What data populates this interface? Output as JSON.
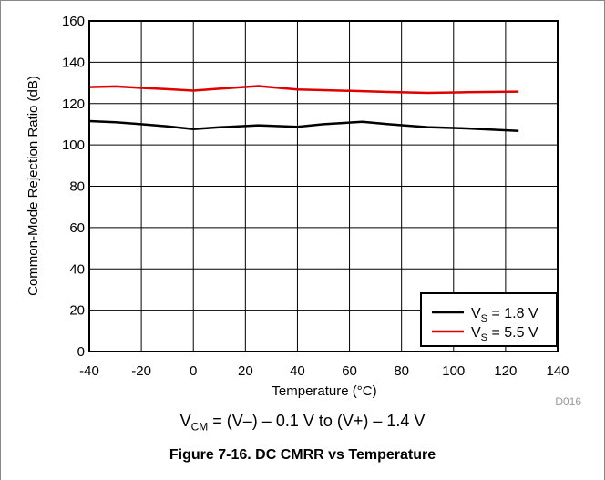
{
  "chart_data": {
    "type": "line",
    "xlabel": "Temperature (°C)",
    "ylabel": "Common-Mode Rejection Ratio (dB)",
    "xlim": [
      -40,
      140
    ],
    "ylim": [
      0,
      160
    ],
    "xticks": [
      -40,
      -20,
      0,
      20,
      40,
      60,
      80,
      100,
      120,
      140
    ],
    "yticks": [
      0,
      20,
      40,
      60,
      80,
      100,
      120,
      140,
      160
    ],
    "grid": true,
    "legend_position": "bottom-right",
    "series": [
      {
        "name": "VS = 1.8 V",
        "label_main": "V",
        "label_sub": "S",
        "label_rest": " = 1.8 V",
        "color": "#000000",
        "x": [
          -40,
          -30,
          -20,
          -10,
          0,
          10,
          25,
          40,
          50,
          65,
          75,
          90,
          105,
          125
        ],
        "y": [
          111.5,
          111,
          110,
          109,
          107.7,
          108.5,
          109.5,
          108.8,
          110,
          111.2,
          110,
          108.6,
          108,
          106.8
        ]
      },
      {
        "name": "VS = 5.5 V",
        "label_main": "V",
        "label_sub": "S",
        "label_rest": " = 5.5 V",
        "color": "#e00000",
        "x": [
          -40,
          -30,
          -20,
          -10,
          0,
          10,
          25,
          40,
          50,
          65,
          75,
          90,
          105,
          125
        ],
        "y": [
          128,
          128.3,
          127.6,
          127,
          126.3,
          127.2,
          128.5,
          126.8,
          126.5,
          126,
          125.6,
          125.2,
          125.5,
          125.8
        ]
      }
    ],
    "watermark": "D016"
  },
  "caption": {
    "condition_main": "V",
    "condition_sub": "CM",
    "condition_rest": " = (V–) – 0.1 V to (V+) – 1.4 V",
    "figure_title": "Figure 7-16. DC CMRR vs Temperature"
  }
}
